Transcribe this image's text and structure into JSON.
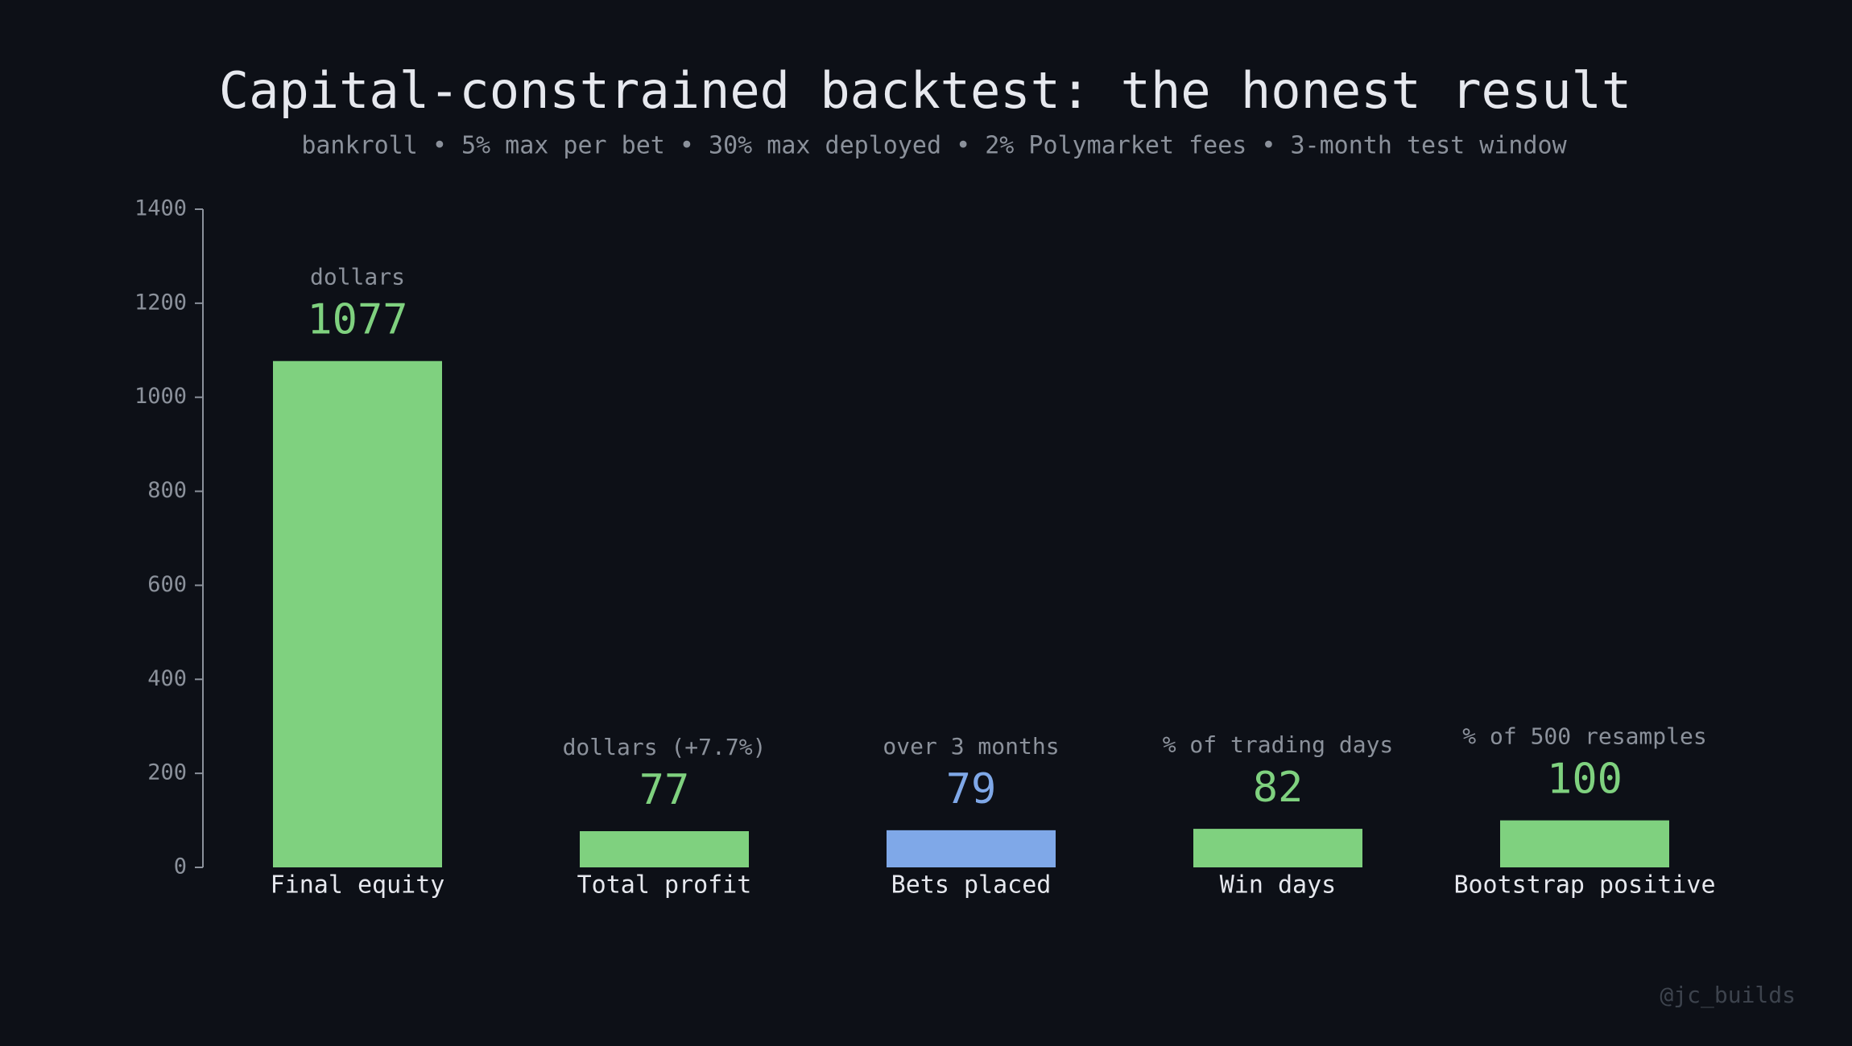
{
  "chart_data": {
    "type": "bar",
    "title": "Capital-constrained backtest: the honest result",
    "subtitle": "bankroll • 5% max per bet • 30% max deployed • 2% Polymarket fees • 3-month test window",
    "categories": [
      "Final equity",
      "Total profit",
      "Bets placed",
      "Win days",
      "Bootstrap positive"
    ],
    "values": [
      1077,
      77,
      79,
      82,
      100
    ],
    "annotations": [
      "dollars",
      "dollars (+7.7%)",
      "over 3 months",
      "% of trading days",
      "% of 500 resamples"
    ],
    "colors": [
      "#7fd17f",
      "#7fd17f",
      "#7fa8e8",
      "#7fd17f",
      "#7fd17f"
    ],
    "ylim": [
      0,
      1400
    ],
    "yticks": [
      0,
      200,
      400,
      600,
      800,
      1000,
      1200,
      1400
    ],
    "watermark": "@jc_builds"
  }
}
